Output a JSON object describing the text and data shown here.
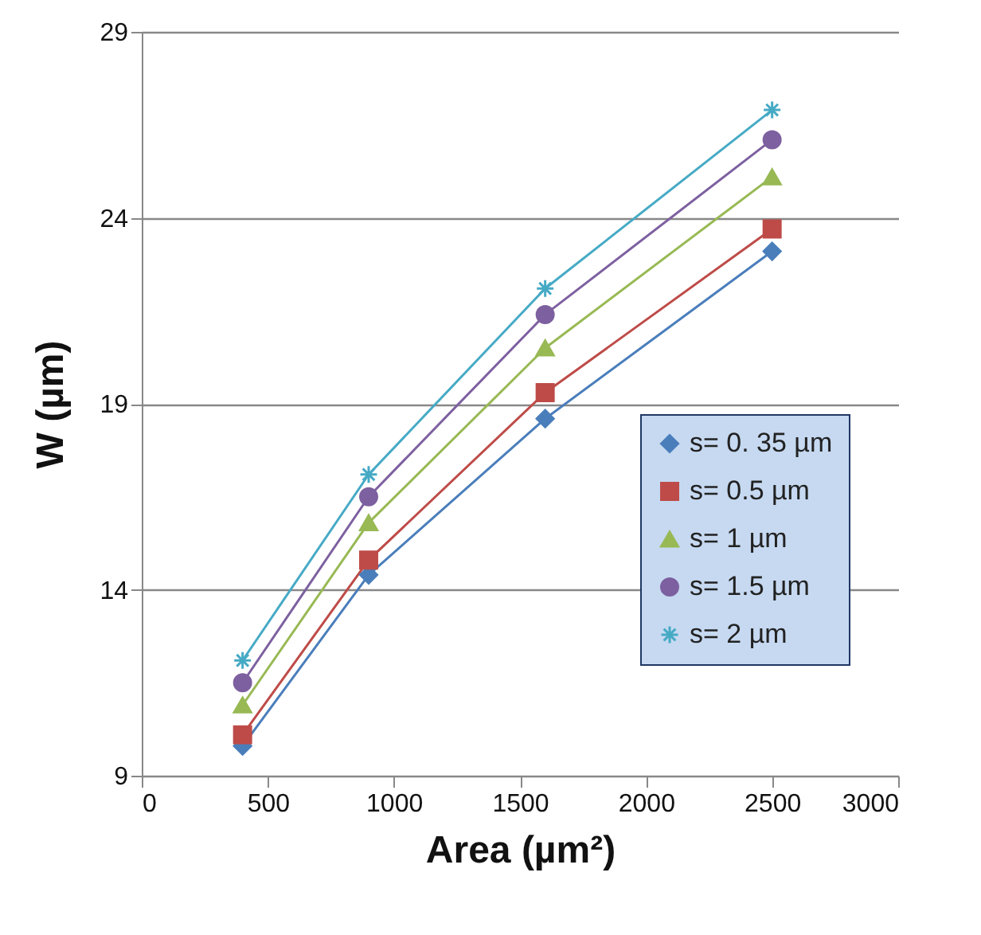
{
  "chart_data": {
    "type": "line",
    "xlabel": "Area (µm²)",
    "ylabel": "W (µm)",
    "x": [
      400,
      900,
      1600,
      2500
    ],
    "series": [
      {
        "name": "s= 0. 35 µm",
        "color": "#4a7ebb",
        "marker": "diamond",
        "values": [
          9.8,
          14.4,
          18.6,
          23.1
        ]
      },
      {
        "name": "s= 0.5 µm",
        "color": "#be4b48",
        "marker": "square",
        "values": [
          10.1,
          14.8,
          19.3,
          23.7
        ]
      },
      {
        "name": "s= 1 µm",
        "color": "#98b954",
        "marker": "triangle",
        "values": [
          10.9,
          15.8,
          20.5,
          25.1
        ]
      },
      {
        "name": "s= 1.5 µm",
        "color": "#7d60a0",
        "marker": "circle",
        "values": [
          11.5,
          16.5,
          21.4,
          26.1
        ]
      },
      {
        "name": "s= 2 µm",
        "color": "#46aac5",
        "marker": "cross",
        "values": [
          12.1,
          17.1,
          22.1,
          26.9
        ]
      }
    ],
    "xlim": [
      0,
      3000
    ],
    "xticks": [
      0,
      500,
      1000,
      1500,
      2000,
      2500,
      3000
    ],
    "ylim": [
      9,
      29
    ],
    "yticks": [
      9,
      14,
      19,
      24,
      29
    ],
    "grid": "y",
    "legend": "bottom right"
  }
}
